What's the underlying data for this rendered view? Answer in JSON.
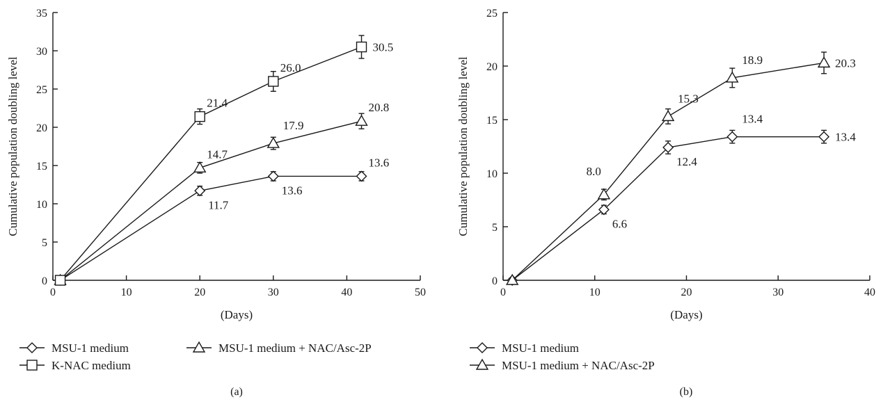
{
  "chart_data": [
    {
      "type": "line",
      "panel_label": "(a)",
      "xlabel": "(Days)",
      "ylabel": "Cumulative population doubling level",
      "xlim": [
        0,
        50
      ],
      "ylim": [
        0,
        35
      ],
      "xticks": [
        0,
        10,
        20,
        30,
        40,
        50
      ],
      "yticks": [
        0,
        5,
        10,
        15,
        20,
        25,
        30,
        35
      ],
      "grid": false,
      "legend_position": "bottom",
      "series": [
        {
          "name": "MSU-1 medium",
          "marker": "diamond",
          "x": [
            1,
            20,
            30,
            42
          ],
          "y": [
            0,
            11.7,
            13.6,
            13.6
          ],
          "err": [
            0,
            0.6,
            0.6,
            0.6
          ],
          "labels": [
            "",
            "11.7",
            "13.6",
            "13.6"
          ],
          "label_pos": [
            "",
            "below-right",
            "below-right",
            "above-right"
          ]
        },
        {
          "name": "MSU-1 medium + NAC/Asc-2P",
          "marker": "triangle",
          "x": [
            1,
            20,
            30,
            42
          ],
          "y": [
            0,
            14.7,
            17.9,
            20.8
          ],
          "err": [
            0,
            0.7,
            0.8,
            1.0
          ],
          "labels": [
            "",
            "14.7",
            "17.9",
            "20.8"
          ],
          "label_pos": [
            "",
            "above-right",
            "above",
            "above-right"
          ]
        },
        {
          "name": "K-NAC medium",
          "marker": "square",
          "x": [
            1,
            20,
            30,
            42
          ],
          "y": [
            0,
            21.4,
            26.0,
            30.5
          ],
          "err": [
            0,
            1.0,
            1.3,
            1.5
          ],
          "labels": [
            "",
            "21.4",
            "26.0",
            "30.5"
          ],
          "label_pos": [
            "",
            "above-right",
            "above-right",
            "right"
          ]
        }
      ]
    },
    {
      "type": "line",
      "panel_label": "(b)",
      "xlabel": "(Days)",
      "ylabel": "Cumulative population doubling level",
      "xlim": [
        0,
        40
      ],
      "ylim": [
        0,
        25
      ],
      "xticks": [
        0,
        10,
        20,
        30,
        40
      ],
      "yticks": [
        0,
        5,
        10,
        15,
        20,
        25
      ],
      "grid": false,
      "legend_position": "bottom",
      "series": [
        {
          "name": "MSU-1 medium",
          "marker": "diamond",
          "x": [
            1,
            11,
            18,
            25,
            35
          ],
          "y": [
            0,
            6.6,
            12.4,
            13.4,
            13.4
          ],
          "err": [
            0,
            0.4,
            0.6,
            0.6,
            0.6
          ],
          "labels": [
            "",
            "6.6",
            "12.4",
            "13.4",
            "13.4"
          ],
          "label_pos": [
            "",
            "below-right",
            "below-right",
            "above",
            "right"
          ]
        },
        {
          "name": "MSU-1 medium + NAC/Asc-2P",
          "marker": "triangle",
          "x": [
            1,
            11,
            18,
            25,
            35
          ],
          "y": [
            0,
            8.0,
            15.3,
            18.9,
            20.3
          ],
          "err": [
            0,
            0.5,
            0.7,
            0.9,
            1.0
          ],
          "labels": [
            "",
            "8.0",
            "15.3",
            "18.9",
            "20.3"
          ],
          "label_pos": [
            "",
            "above-left",
            "above",
            "above",
            "right"
          ]
        }
      ]
    }
  ]
}
